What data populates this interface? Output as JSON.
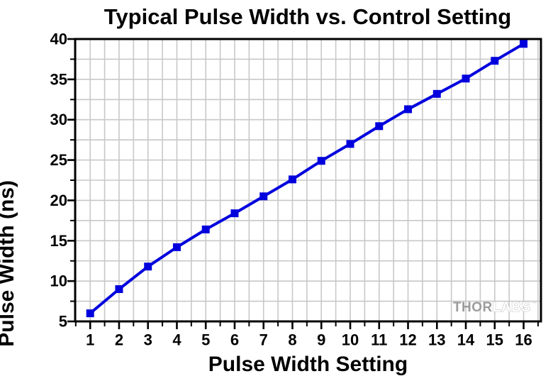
{
  "chart_data": {
    "type": "line",
    "title": "Typical Pulse Width vs. Control Setting",
    "xlabel": "Pulse Width Setting",
    "ylabel": "Pulse Width (ns)",
    "series": [
      {
        "name": "Typical Pulse Width",
        "x": [
          1,
          2,
          3,
          4,
          5,
          6,
          7,
          8,
          9,
          10,
          11,
          12,
          13,
          14,
          15,
          16
        ],
        "y": [
          6.0,
          9.0,
          11.8,
          14.2,
          16.4,
          18.4,
          20.5,
          22.6,
          24.9,
          27.0,
          29.2,
          31.3,
          33.2,
          35.1,
          37.3,
          39.4
        ]
      }
    ],
    "x_major_ticks": [
      1,
      2,
      3,
      4,
      5,
      6,
      7,
      8,
      9,
      10,
      11,
      12,
      13,
      14,
      15,
      16
    ],
    "y_major_ticks": [
      5,
      10,
      15,
      20,
      25,
      30,
      35,
      40
    ],
    "x_minor_step": 0.5,
    "y_minor_step": 2.5,
    "xlim": [
      0.48,
      16.6
    ],
    "ylim": [
      5,
      40
    ],
    "grid": true,
    "legend_position": "none",
    "line_color": "#0000DD",
    "marker": "square",
    "marker_size": 11,
    "grid_color": "#c8c8c8",
    "frame_color": "#000000",
    "text_color": "#000000"
  },
  "watermark": {
    "part1": "THOR",
    "part2": "LABS",
    "tm": "™",
    "part1_color": "#9c9c9c",
    "part2_stroke": "#c4c4c4"
  }
}
